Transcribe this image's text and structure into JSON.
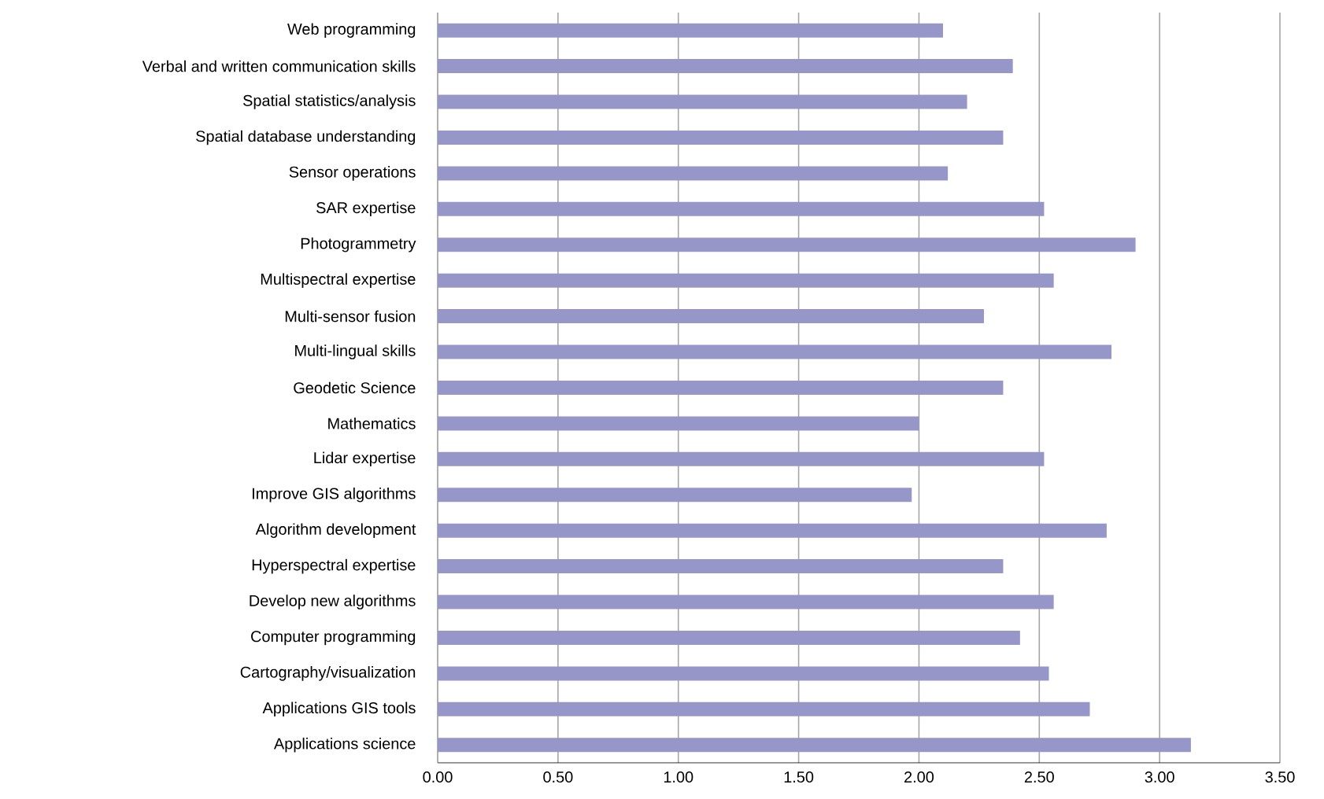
{
  "chart_data": {
    "type": "bar",
    "orientation": "horizontal",
    "color": "#9696c8",
    "grid": "x",
    "categories": [
      "Web programming",
      "Verbal and written communication skills",
      "Spatial statistics/analysis",
      "Spatial database understanding",
      "Sensor operations",
      "SAR expertise",
      "Photogrammetry",
      "Multispectral expertise",
      "Multi-sensor fusion",
      "Multi-lingual skills",
      "Geodetic Science",
      "Mathematics",
      "Lidar expertise",
      "Improve GIS algorithms",
      "Algorithm development",
      "Hyperspectral expertise",
      "Develop new algorithms",
      "Computer programming",
      "Cartography/visualization",
      "Applications GIS tools",
      "Applications science"
    ],
    "values": [
      2.1,
      2.39,
      2.2,
      2.35,
      2.12,
      2.52,
      2.9,
      2.56,
      2.27,
      2.8,
      2.35,
      2.0,
      2.52,
      1.97,
      2.78,
      2.35,
      2.56,
      2.42,
      2.54,
      2.71,
      3.13
    ],
    "xlim": [
      0,
      3.5
    ],
    "xticks": [
      {
        "value": 0,
        "label": "0.00"
      },
      {
        "value": 0.5,
        "label": "0.50"
      },
      {
        "value": 1,
        "label": "1.00"
      },
      {
        "value": 1.5,
        "label": "1.50"
      },
      {
        "value": 2,
        "label": "2.00"
      },
      {
        "value": 2.5,
        "label": "2.50"
      },
      {
        "value": 3,
        "label": "3.00"
      },
      {
        "value": 3.5,
        "label": "3.50"
      }
    ]
  }
}
